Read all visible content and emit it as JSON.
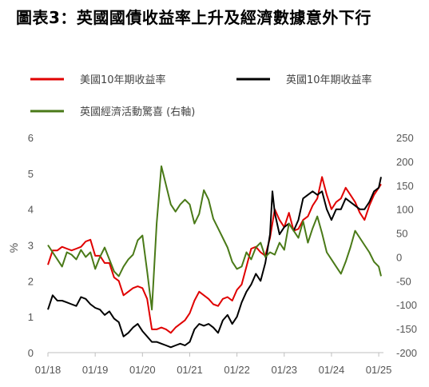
{
  "title": "圖表3：英國國債收益率上升及經濟數據意外下行",
  "chart_data": {
    "type": "line",
    "ylabel_left": "%",
    "ylim_left": [
      0,
      6
    ],
    "yticks_left": [
      "0",
      "1",
      "2",
      "3",
      "4",
      "5",
      "6"
    ],
    "ylim_right": [
      -200,
      250
    ],
    "yticks_right": [
      "-200",
      "-150",
      "-100",
      "-50",
      "0",
      "50",
      "100",
      "150",
      "200",
      "250"
    ],
    "xlim": [
      2018.0,
      2025.1
    ],
    "xticks": [
      {
        "label": "01/18",
        "t": 2018.0
      },
      {
        "label": "01/19",
        "t": 2019.0
      },
      {
        "label": "01/20",
        "t": 2020.0
      },
      {
        "label": "01/21",
        "t": 2021.0
      },
      {
        "label": "01/22",
        "t": 2022.0
      },
      {
        "label": "01/23",
        "t": 2023.0
      },
      {
        "label": "01/24",
        "t": 2024.0
      },
      {
        "label": "01/25",
        "t": 2025.0
      }
    ],
    "series": [
      {
        "name": "美國10年期收益率",
        "color": "#e00000",
        "axis": "left",
        "points": [
          [
            2018.0,
            2.45
          ],
          [
            2018.1,
            2.85
          ],
          [
            2018.2,
            2.85
          ],
          [
            2018.3,
            2.95
          ],
          [
            2018.4,
            2.9
          ],
          [
            2018.5,
            2.85
          ],
          [
            2018.6,
            2.9
          ],
          [
            2018.7,
            2.95
          ],
          [
            2018.8,
            3.1
          ],
          [
            2018.9,
            3.15
          ],
          [
            2019.0,
            2.7
          ],
          [
            2019.1,
            2.7
          ],
          [
            2019.2,
            2.5
          ],
          [
            2019.3,
            2.5
          ],
          [
            2019.4,
            2.1
          ],
          [
            2019.5,
            2.0
          ],
          [
            2019.6,
            1.6
          ],
          [
            2019.7,
            1.7
          ],
          [
            2019.8,
            1.8
          ],
          [
            2019.9,
            1.85
          ],
          [
            2020.0,
            1.8
          ],
          [
            2020.1,
            1.5
          ],
          [
            2020.2,
            0.65
          ],
          [
            2020.3,
            0.65
          ],
          [
            2020.4,
            0.7
          ],
          [
            2020.5,
            0.65
          ],
          [
            2020.6,
            0.55
          ],
          [
            2020.7,
            0.7
          ],
          [
            2020.8,
            0.8
          ],
          [
            2020.9,
            0.9
          ],
          [
            2021.0,
            1.1
          ],
          [
            2021.1,
            1.45
          ],
          [
            2021.2,
            1.7
          ],
          [
            2021.3,
            1.6
          ],
          [
            2021.4,
            1.5
          ],
          [
            2021.5,
            1.35
          ],
          [
            2021.6,
            1.3
          ],
          [
            2021.7,
            1.5
          ],
          [
            2021.8,
            1.55
          ],
          [
            2021.9,
            1.45
          ],
          [
            2022.0,
            1.75
          ],
          [
            2022.1,
            1.9
          ],
          [
            2022.2,
            2.4
          ],
          [
            2022.3,
            2.9
          ],
          [
            2022.4,
            2.95
          ],
          [
            2022.5,
            2.8
          ],
          [
            2022.6,
            2.7
          ],
          [
            2022.7,
            3.2
          ],
          [
            2022.8,
            4.0
          ],
          [
            2022.9,
            3.7
          ],
          [
            2023.0,
            3.5
          ],
          [
            2023.1,
            3.9
          ],
          [
            2023.2,
            3.4
          ],
          [
            2023.3,
            3.45
          ],
          [
            2023.4,
            3.7
          ],
          [
            2023.5,
            3.8
          ],
          [
            2023.6,
            4.1
          ],
          [
            2023.7,
            4.3
          ],
          [
            2023.8,
            4.9
          ],
          [
            2023.9,
            4.4
          ],
          [
            2024.0,
            4.0
          ],
          [
            2024.1,
            4.2
          ],
          [
            2024.2,
            4.3
          ],
          [
            2024.3,
            4.6
          ],
          [
            2024.4,
            4.4
          ],
          [
            2024.5,
            4.2
          ],
          [
            2024.6,
            3.9
          ],
          [
            2024.7,
            3.7
          ],
          [
            2024.8,
            4.1
          ],
          [
            2024.9,
            4.4
          ],
          [
            2025.0,
            4.6
          ],
          [
            2025.05,
            4.7
          ]
        ]
      },
      {
        "name": "英國10年期收益率",
        "color": "#000000",
        "axis": "left",
        "points": [
          [
            2018.0,
            1.2
          ],
          [
            2018.1,
            1.6
          ],
          [
            2018.2,
            1.45
          ],
          [
            2018.3,
            1.45
          ],
          [
            2018.4,
            1.4
          ],
          [
            2018.5,
            1.35
          ],
          [
            2018.6,
            1.3
          ],
          [
            2018.7,
            1.55
          ],
          [
            2018.8,
            1.5
          ],
          [
            2018.9,
            1.35
          ],
          [
            2019.0,
            1.25
          ],
          [
            2019.1,
            1.2
          ],
          [
            2019.2,
            1.05
          ],
          [
            2019.3,
            1.15
          ],
          [
            2019.4,
            0.95
          ],
          [
            2019.5,
            0.85
          ],
          [
            2019.6,
            0.45
          ],
          [
            2019.7,
            0.55
          ],
          [
            2019.8,
            0.7
          ],
          [
            2019.9,
            0.8
          ],
          [
            2020.0,
            0.6
          ],
          [
            2020.1,
            0.45
          ],
          [
            2020.2,
            0.3
          ],
          [
            2020.3,
            0.3
          ],
          [
            2020.4,
            0.25
          ],
          [
            2020.5,
            0.2
          ],
          [
            2020.6,
            0.15
          ],
          [
            2020.7,
            0.2
          ],
          [
            2020.8,
            0.25
          ],
          [
            2020.9,
            0.2
          ],
          [
            2021.0,
            0.3
          ],
          [
            2021.1,
            0.65
          ],
          [
            2021.2,
            0.8
          ],
          [
            2021.3,
            0.75
          ],
          [
            2021.4,
            0.8
          ],
          [
            2021.5,
            0.7
          ],
          [
            2021.6,
            0.55
          ],
          [
            2021.7,
            0.9
          ],
          [
            2021.8,
            1.05
          ],
          [
            2021.9,
            0.8
          ],
          [
            2022.0,
            1.0
          ],
          [
            2022.1,
            1.4
          ],
          [
            2022.2,
            1.7
          ],
          [
            2022.3,
            1.9
          ],
          [
            2022.4,
            2.2
          ],
          [
            2022.5,
            2.0
          ],
          [
            2022.6,
            2.5
          ],
          [
            2022.7,
            3.3
          ],
          [
            2022.75,
            4.5
          ],
          [
            2022.8,
            3.9
          ],
          [
            2022.9,
            3.3
          ],
          [
            2023.0,
            3.5
          ],
          [
            2023.1,
            3.6
          ],
          [
            2023.2,
            3.4
          ],
          [
            2023.3,
            3.7
          ],
          [
            2023.4,
            4.3
          ],
          [
            2023.5,
            4.4
          ],
          [
            2023.6,
            4.5
          ],
          [
            2023.7,
            4.4
          ],
          [
            2023.8,
            4.5
          ],
          [
            2023.9,
            4.0
          ],
          [
            2024.0,
            3.7
          ],
          [
            2024.1,
            4.0
          ],
          [
            2024.2,
            4.0
          ],
          [
            2024.3,
            4.3
          ],
          [
            2024.4,
            4.2
          ],
          [
            2024.5,
            4.1
          ],
          [
            2024.6,
            4.0
          ],
          [
            2024.7,
            4.0
          ],
          [
            2024.8,
            4.2
          ],
          [
            2024.9,
            4.5
          ],
          [
            2025.0,
            4.6
          ],
          [
            2025.05,
            4.9
          ]
        ]
      },
      {
        "name": "英國經濟活動驚喜 (右軸)",
        "color": "#4a7a18",
        "axis": "right",
        "points": [
          [
            2018.0,
            25
          ],
          [
            2018.1,
            10
          ],
          [
            2018.2,
            -5
          ],
          [
            2018.3,
            -20
          ],
          [
            2018.4,
            10
          ],
          [
            2018.5,
            5
          ],
          [
            2018.6,
            -5
          ],
          [
            2018.7,
            15
          ],
          [
            2018.8,
            0
          ],
          [
            2018.9,
            10
          ],
          [
            2019.0,
            -25
          ],
          [
            2019.1,
            0
          ],
          [
            2019.2,
            20
          ],
          [
            2019.3,
            -5
          ],
          [
            2019.4,
            -30
          ],
          [
            2019.5,
            -40
          ],
          [
            2019.6,
            -20
          ],
          [
            2019.7,
            -5
          ],
          [
            2019.8,
            5
          ],
          [
            2019.9,
            35
          ],
          [
            2020.0,
            45
          ],
          [
            2020.1,
            -30
          ],
          [
            2020.2,
            -110
          ],
          [
            2020.3,
            70
          ],
          [
            2020.4,
            190
          ],
          [
            2020.5,
            150
          ],
          [
            2020.6,
            110
          ],
          [
            2020.7,
            95
          ],
          [
            2020.8,
            110
          ],
          [
            2020.9,
            120
          ],
          [
            2021.0,
            110
          ],
          [
            2021.1,
            70
          ],
          [
            2021.2,
            90
          ],
          [
            2021.3,
            140
          ],
          [
            2021.4,
            120
          ],
          [
            2021.5,
            80
          ],
          [
            2021.6,
            60
          ],
          [
            2021.7,
            40
          ],
          [
            2021.8,
            20
          ],
          [
            2021.9,
            -10
          ],
          [
            2022.0,
            -25
          ],
          [
            2022.1,
            -20
          ],
          [
            2022.2,
            10
          ],
          [
            2022.3,
            -5
          ],
          [
            2022.4,
            20
          ],
          [
            2022.5,
            30
          ],
          [
            2022.6,
            0
          ],
          [
            2022.7,
            10
          ],
          [
            2022.8,
            5
          ],
          [
            2022.9,
            30
          ],
          [
            2023.0,
            15
          ],
          [
            2023.1,
            70
          ],
          [
            2023.2,
            55
          ],
          [
            2023.3,
            40
          ],
          [
            2023.4,
            75
          ],
          [
            2023.5,
            30
          ],
          [
            2023.6,
            60
          ],
          [
            2023.7,
            85
          ],
          [
            2023.8,
            50
          ],
          [
            2023.9,
            10
          ],
          [
            2024.0,
            -5
          ],
          [
            2024.1,
            -20
          ],
          [
            2024.2,
            -35
          ],
          [
            2024.3,
            -10
          ],
          [
            2024.4,
            20
          ],
          [
            2024.5,
            55
          ],
          [
            2024.6,
            40
          ],
          [
            2024.7,
            25
          ],
          [
            2024.8,
            10
          ],
          [
            2024.9,
            -10
          ],
          [
            2025.0,
            -20
          ],
          [
            2025.05,
            -40
          ]
        ]
      }
    ]
  }
}
